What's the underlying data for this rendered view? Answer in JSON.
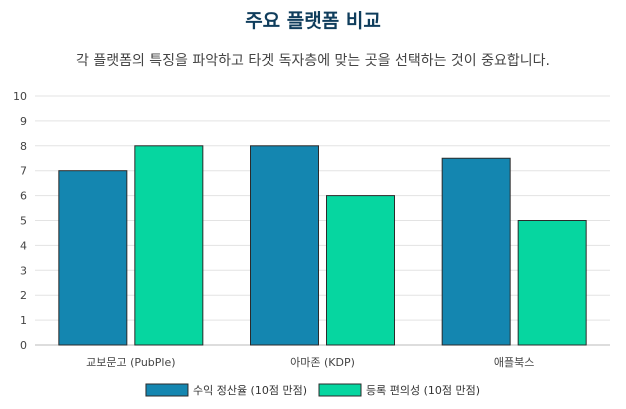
{
  "header": {
    "title": "주요 플랫폼 비교",
    "subtitle": "각 플랫폼의 특징을 파악하고 타겟 독자층에 맞는 곳을 선택하는 것이 중요합니다."
  },
  "chart_data": {
    "type": "bar",
    "categories": [
      "교보문고 (PubPle)",
      "아마존 (KDP)",
      "애플북스"
    ],
    "series": [
      {
        "name": "수익 정산율 (10점 만점)",
        "values": [
          7,
          8,
          7.5
        ],
        "color": "#1486b0"
      },
      {
        "name": "등록 편의성 (10점 만점)",
        "values": [
          8,
          6,
          5
        ],
        "color": "#06d6a0"
      }
    ],
    "ylim": [
      0,
      10
    ],
    "yticks": [
      0,
      1,
      2,
      3,
      4,
      5,
      6,
      7,
      8,
      9,
      10
    ],
    "grid": true,
    "legend_position": "bottom"
  }
}
